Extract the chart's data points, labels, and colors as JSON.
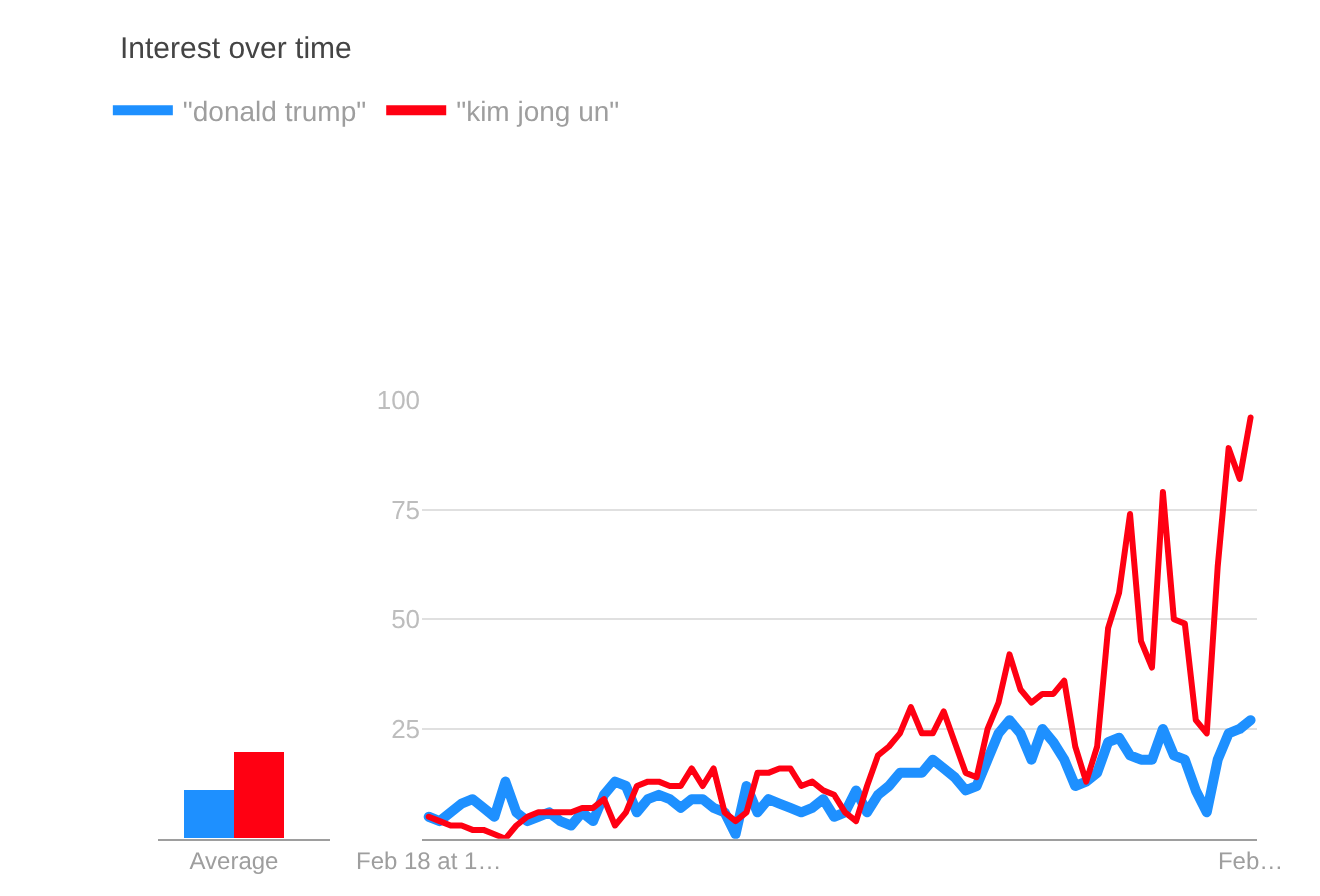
{
  "chart_data": [
    {
      "type": "bar",
      "title": "Interest over time",
      "categories": [
        "Average"
      ],
      "ylim": [
        0,
        100
      ],
      "tick_labels": "x",
      "grid": false,
      "legend": "top left",
      "series": [
        {
          "color": "#1e90ff",
          "values": [
            11
          ]
        },
        {
          "color": "#ff0012",
          "values": [
            20
          ]
        }
      ]
    },
    {
      "type": "line",
      "categories": [
        "Feb 18 at 1…",
        null,
        null,
        null,
        null,
        null,
        null,
        null,
        null,
        null,
        null,
        null,
        null,
        null,
        null,
        null,
        null,
        null,
        null,
        null,
        null,
        null,
        null,
        null,
        null,
        null,
        null,
        null,
        null,
        null,
        null,
        null,
        null,
        null,
        null,
        null,
        null,
        null,
        null,
        null,
        null,
        null,
        null,
        null,
        null,
        null,
        null,
        null,
        null,
        null,
        null,
        null,
        null,
        null,
        null,
        null,
        null,
        null,
        null,
        null,
        null,
        null,
        null,
        null,
        null,
        null,
        null,
        null,
        null,
        null,
        null,
        null,
        null,
        null,
        null,
        "Feb…"
      ],
      "ylim": [
        0,
        100
      ],
      "yticks": [
        {
          "value": 0,
          "label": null
        },
        25,
        50,
        75,
        100
      ],
      "grid": "y",
      "legend": "top left",
      "marker": "none",
      "line_style": "solid",
      "series": [
        {
          "name": "\"donald trump\"",
          "color": "#1e90ff",
          "values": [
            5,
            4,
            6,
            8,
            9,
            7,
            5,
            13,
            6,
            4,
            5,
            6,
            4,
            3,
            6,
            4,
            10,
            13,
            12,
            6,
            9,
            10,
            9,
            7,
            9,
            9,
            7,
            6,
            1,
            12,
            6,
            9,
            8,
            7,
            6,
            7,
            9,
            5,
            6,
            11,
            6,
            10,
            12,
            15,
            15,
            15,
            18,
            16,
            14,
            11,
            12,
            18,
            24,
            27,
            24,
            18,
            25,
            22,
            18,
            12,
            13,
            15,
            22,
            23,
            19,
            18,
            18,
            25,
            19,
            18,
            11,
            6,
            18,
            24,
            25,
            27
          ]
        },
        {
          "name": "\"kim jong un\"",
          "color": "#ff0012",
          "values": [
            5,
            4,
            3,
            3,
            2,
            2,
            1,
            0,
            3,
            5,
            6,
            6,
            6,
            6,
            7,
            7,
            9,
            3,
            6,
            12,
            13,
            13,
            12,
            12,
            16,
            12,
            16,
            6,
            4,
            6,
            15,
            15,
            16,
            16,
            12,
            13,
            11,
            10,
            6,
            4,
            12,
            19,
            21,
            24,
            30,
            24,
            24,
            29,
            22,
            15,
            14,
            25,
            31,
            42,
            34,
            31,
            33,
            33,
            36,
            21,
            13,
            21,
            48,
            56,
            74,
            45,
            39,
            79,
            50,
            49,
            27,
            24,
            62,
            89,
            82,
            96
          ]
        }
      ]
    }
  ]
}
